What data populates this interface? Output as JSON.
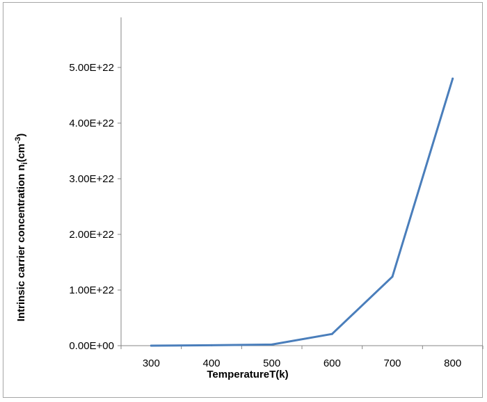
{
  "chart_data": {
    "type": "line",
    "xlabel": "TemperatureT(k)",
    "ylabel": {
      "main": "Intrinsic carrier concentration n",
      "subscript": "i",
      "unit_open": "(cm",
      "unit_exp": "-3",
      "unit_close": ")"
    },
    "categories": [
      "300",
      "400",
      "500",
      "600",
      "700",
      "800"
    ],
    "series": [
      {
        "values": [
          0,
          8e+19,
          2e+20,
          2.1e+21,
          1.24e+22,
          4.8e+22
        ]
      }
    ],
    "yticks": [
      0,
      1e+22,
      2e+22,
      3e+22,
      4e+22,
      5e+22
    ],
    "ytick_labels": [
      "0.00E+00",
      "1.00E+22",
      "2.00E+22",
      "3.00E+22",
      "4.00E+22",
      "5.00E+22"
    ],
    "ylim": [
      0,
      5.9e+22
    ],
    "grid": false,
    "legend": "none",
    "colors": {
      "line": "#4a7ebb",
      "axis": "#868686",
      "frame": "#a6a6a6"
    }
  }
}
